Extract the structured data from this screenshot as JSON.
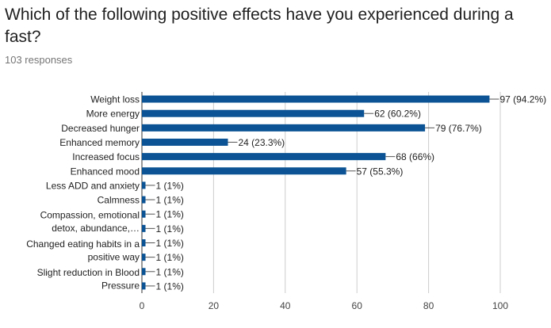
{
  "question": "Which of the following positive effects have you experienced during a fast?",
  "responses": "103 responses",
  "colors": {
    "bar": "#0b5394",
    "grid": "#cccccc",
    "axis": "#333333"
  },
  "chart_data": {
    "type": "bar",
    "orientation": "horizontal",
    "categories": [
      "Weight loss",
      "More energy",
      "Decreased hunger",
      "Enhanced memory",
      "Increased focus",
      "Enhanced mood",
      "Less ADD and anxiety",
      "Calmness",
      "Compassion, emotional detox, abundance,…",
      "Compassion, emotional detox, abundance,…",
      "Changed eating habits in a positive way",
      "Changed eating habits in a positive way",
      "Slight reduction in Blood Pressure",
      "Slight reduction in Blood Pressure"
    ],
    "category_labels": [
      {
        "lines": [
          "Weight loss"
        ],
        "row": 0
      },
      {
        "lines": [
          "More energy"
        ],
        "row": 1
      },
      {
        "lines": [
          "Decreased hunger"
        ],
        "row": 2
      },
      {
        "lines": [
          "Enhanced memory"
        ],
        "row": 3
      },
      {
        "lines": [
          "Increased focus"
        ],
        "row": 4
      },
      {
        "lines": [
          "Enhanced mood"
        ],
        "row": 5
      },
      {
        "lines": [
          "Less ADD and anxiety"
        ],
        "row": 6
      },
      {
        "lines": [
          "Calmness"
        ],
        "row": 7
      },
      {
        "lines": [
          "Compassion, emotional",
          "detox, abundance,…"
        ],
        "row": 8.5
      },
      {
        "lines": [
          "Changed eating habits in a",
          "positive way"
        ],
        "row": 10.5
      },
      {
        "lines": [
          "Slight reduction in Blood",
          "Pressure"
        ],
        "row": 12.5
      }
    ],
    "values": [
      97,
      62,
      79,
      24,
      68,
      57,
      1,
      1,
      1,
      1,
      1,
      1,
      1,
      1
    ],
    "data_labels": [
      "97 (94.2%)",
      "62 (60.2%)",
      "79 (76.7%)",
      "24 (23.3%)",
      "68 (66%)",
      "57 (55.3%)",
      "1 (1%)",
      "1 (1%)",
      "1 (1%)",
      "1 (1%)",
      "1 (1%)",
      "1 (1%)",
      "1 (1%)",
      "1 (1%)"
    ],
    "xlim": [
      0,
      100
    ],
    "xticks": [
      0,
      20,
      40,
      60,
      80,
      100
    ],
    "grid": true
  }
}
